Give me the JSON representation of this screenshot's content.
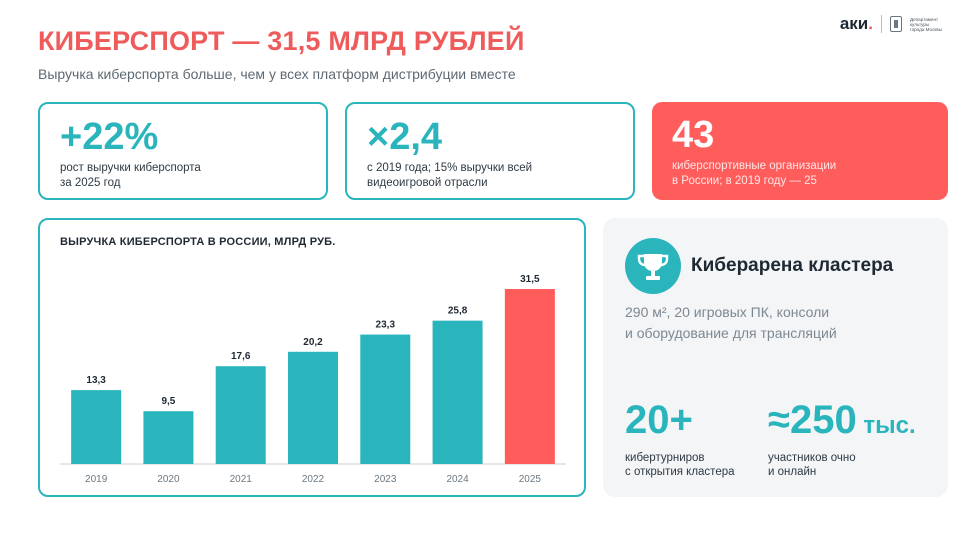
{
  "header": {
    "title": "КИБЕРСПОРТ — 31,5 МЛРД РУБЛЕЙ",
    "subtitle": "Выручка киберспорта больше, чем у всех платформ дистрибуции вместе",
    "logo_text": "аки",
    "logo_dot": ".",
    "logo_small": "Департамент культуры города Москвы"
  },
  "stats": [
    {
      "value": "+22%",
      "desc_line1": "рост выручки киберспорта",
      "desc_line2": "за 2025 год"
    },
    {
      "value": "×2,4",
      "desc_line1": "с 2019 года; 15% выручки всей",
      "desc_line2": "видеоигровой отрасли"
    },
    {
      "value": "43",
      "desc_line1": "киберспортивные организации",
      "desc_line2": "в России; в 2019 году — 25"
    }
  ],
  "chart_data": {
    "type": "bar",
    "title": "ВЫРУЧКА КИБЕРСПОРТА В РОССИИ, МЛРД РУБ.",
    "categories": [
      "2019",
      "2020",
      "2021",
      "2022",
      "2023",
      "2024",
      "2025"
    ],
    "values": [
      13.3,
      9.5,
      17.6,
      20.2,
      23.3,
      25.8,
      31.5
    ],
    "labels": [
      "13,3",
      "9,5",
      "17,6",
      "20,2",
      "23,3",
      "25,8",
      "31,5"
    ],
    "ylim": [
      0,
      31.5
    ],
    "colors": [
      "#2ab5bd",
      "#2ab5bd",
      "#2ab5bd",
      "#2ab5bd",
      "#2ab5bd",
      "#2ab5bd",
      "#ff5c5c"
    ],
    "grid": false,
    "xlabel": "",
    "ylabel": ""
  },
  "cluster": {
    "icon": "trophy-icon",
    "title": "Киберарена кластера",
    "desc_line1": "290 м², 20 игровых ПК, консоли",
    "desc_line2": "и оборудование для трансляций",
    "stats": [
      {
        "value": "20+",
        "unit": "",
        "desc_line1": "кибертурниров",
        "desc_line2": "с открытия кластера"
      },
      {
        "value": "≈250",
        "unit": " тыс.",
        "desc_line1": "участников очно",
        "desc_line2": "и онлайн"
      }
    ]
  },
  "colors": {
    "accent": "#2ab5bd",
    "highlight": "#ff5c5c",
    "title": "#ef5b5b"
  }
}
